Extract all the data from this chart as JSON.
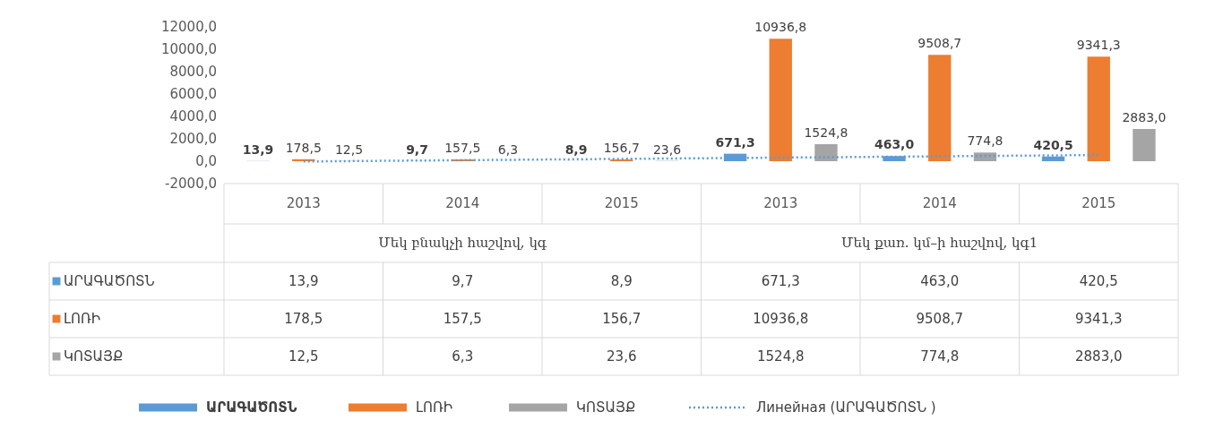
{
  "chart_data": {
    "type": "bar",
    "categories": [
      "2013",
      "2014",
      "2015",
      "2013",
      "2014",
      "2015"
    ],
    "annotations": [
      "Մեկ բնակչի հաշվով, կգ",
      "Մեկ քառ. կմ–ի հաշվով, կգ1"
    ],
    "series": [
      {
        "name": "ԱՐԱԳԱԾՈՏՆ",
        "color": "#5b9bd5",
        "values": [
          13.9,
          9.7,
          8.9,
          671.3,
          463.0,
          420.5
        ],
        "value_labels": [
          "13,9",
          "9,7",
          "8,9",
          "671,3",
          "463,0",
          "420,5"
        ]
      },
      {
        "name": "ԼՈՌԻ",
        "color": "#ed7d31",
        "values": [
          178.5,
          157.5,
          156.7,
          10936.8,
          9508.7,
          9341.3
        ],
        "value_labels": [
          "178,5",
          "157,5",
          "156,7",
          "10936,8",
          "9508,7",
          "9341,3"
        ]
      },
      {
        "name": "ԿՈՏԱՅՔ",
        "color": "#a5a5a5",
        "values": [
          12.5,
          6.3,
          23.6,
          1524.8,
          774.8,
          2883.0
        ],
        "value_labels": [
          "12,5",
          "6,3",
          "23,6",
          "1524,8",
          "774,8",
          "2883,0"
        ]
      },
      {
        "name": "Линейная (ԱՐԱԳԱԾՈՏՆ )",
        "type": "line",
        "color": "#5b9bd5",
        "line_style": "dotted",
        "values": [
          -25,
          91,
          207,
          322,
          438,
          554
        ]
      }
    ],
    "ylim": [
      -2000,
      12000
    ],
    "yticks": [
      {
        "value": -2000,
        "label": "-2000,0"
      },
      {
        "value": 0,
        "label": "0,0"
      },
      {
        "value": 2000,
        "label": "2000,0"
      },
      {
        "value": 4000,
        "label": "4000,0"
      },
      {
        "value": 6000,
        "label": "6000,0"
      },
      {
        "value": 8000,
        "label": "8000,0"
      },
      {
        "value": 10000,
        "label": "10000,0"
      },
      {
        "value": 12000,
        "label": "12000,0"
      }
    ],
    "legend": "bottom"
  }
}
